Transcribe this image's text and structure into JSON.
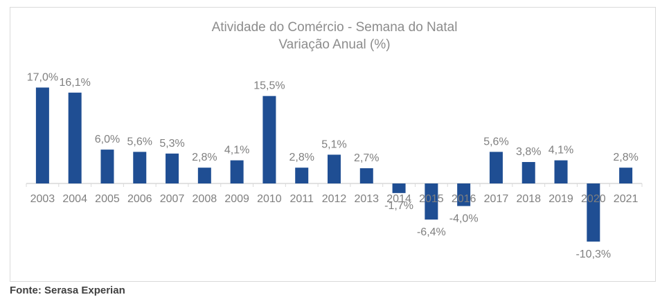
{
  "chart_data": {
    "type": "bar",
    "title": "Atividade do Comércio - Semana do Natal",
    "subtitle": "Variação Anual (%)",
    "xlabel": "",
    "ylabel": "",
    "categories": [
      "2003",
      "2004",
      "2005",
      "2006",
      "2007",
      "2008",
      "2009",
      "2010",
      "2011",
      "2012",
      "2013",
      "2014",
      "2015",
      "2016",
      "2017",
      "2018",
      "2019",
      "2020",
      "2021"
    ],
    "values": [
      17.0,
      16.1,
      6.0,
      5.6,
      5.3,
      2.8,
      4.1,
      15.5,
      2.8,
      5.1,
      2.7,
      -1.7,
      -6.4,
      -4.0,
      5.6,
      3.8,
      4.1,
      -10.3,
      2.8
    ],
    "data_labels": [
      "17,0%",
      "16,1%",
      "6,0%",
      "5,6%",
      "5,3%",
      "2,8%",
      "4,1%",
      "15,5%",
      "2,8%",
      "5,1%",
      "2,7%",
      "-1,7%",
      "-6,4%",
      "-4,0%",
      "5,6%",
      "3,8%",
      "4,1%",
      "-10,3%",
      "2,8%"
    ],
    "ylim": [
      -12,
      18
    ],
    "grid": false,
    "legend": false,
    "colors": {
      "bar": "#1f4e93",
      "axis": "#d9d9d9",
      "label": "#7f7f7f",
      "title": "#8c8c8c"
    }
  },
  "source": "Fonte: Serasa Experian"
}
